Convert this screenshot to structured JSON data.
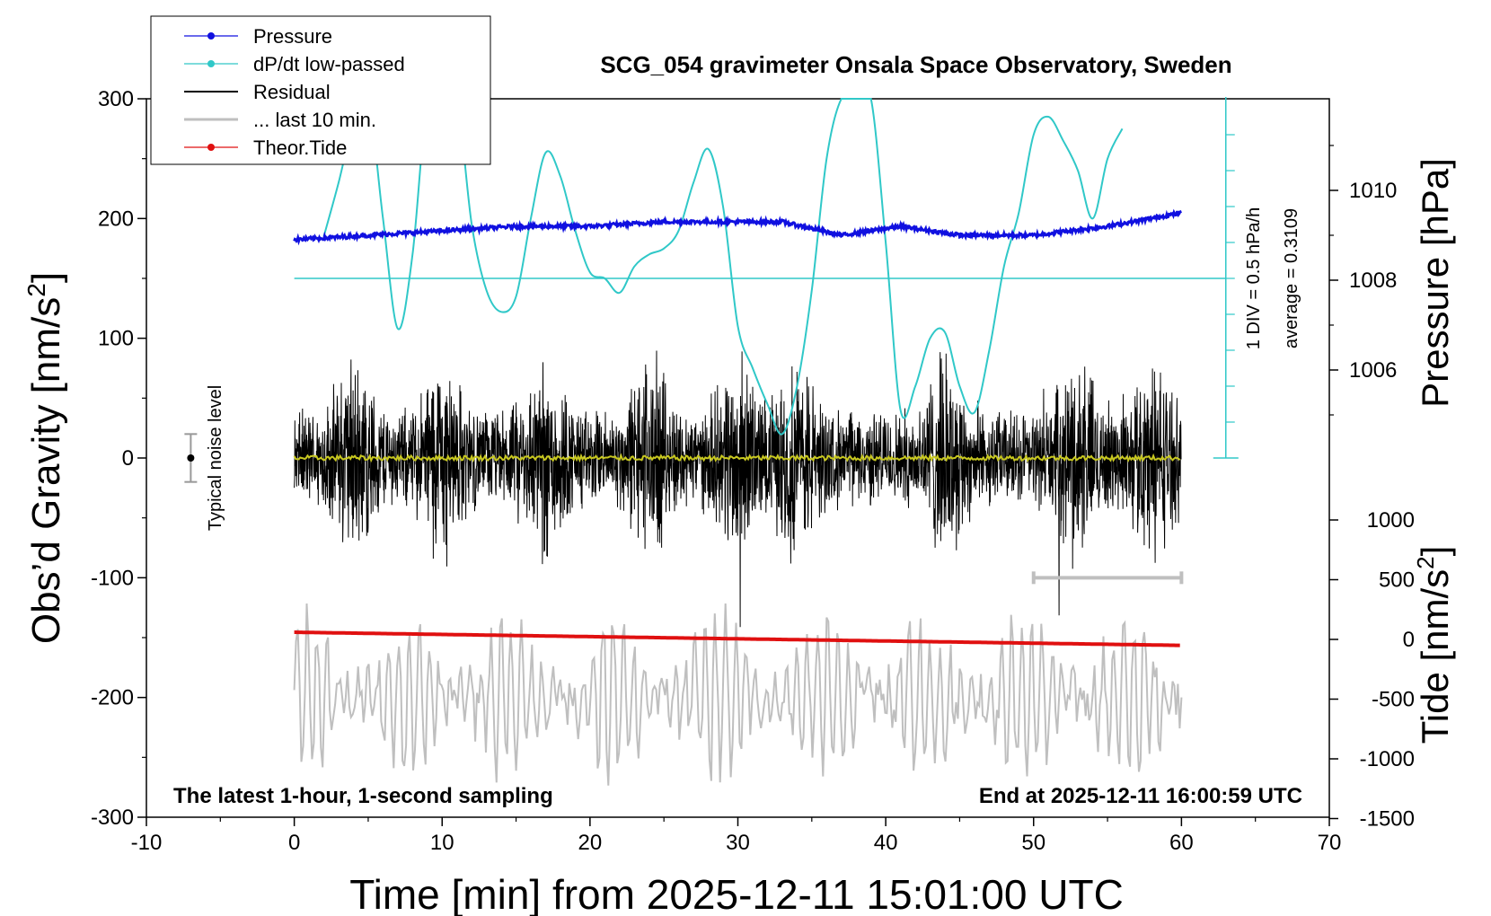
{
  "chart_data": {
    "type": "line",
    "title": "SCG_054 gravimeter Onsala Space Observatory, Sweden",
    "xlabel": "Time [min] from 2025-12-11 15:01:00 UTC",
    "ylabel_left": "Obs’d Gravity [nm/s",
    "ylabel_right_top": "Pressure [hPa]",
    "ylabel_right_bottom": "Tide [nm/s",
    "unit_sup": "2",
    "xlim": [
      -10,
      70
    ],
    "ylim_left": [
      -300,
      300
    ],
    "pressure_lim": [
      1004,
      1012
    ],
    "tide_lim": [
      -1500,
      1500
    ],
    "x_ticks": [
      -10,
      0,
      10,
      20,
      30,
      40,
      50,
      60,
      70
    ],
    "x_tick_labels": [
      "-10",
      "0",
      "10",
      "20",
      "30",
      "40",
      "50",
      "60",
      "70"
    ],
    "y_ticks_left": [
      300,
      200,
      100,
      0,
      -100,
      -200,
      -300
    ],
    "y_tick_labels_left": [
      "300",
      "200",
      "100",
      "0",
      "-100",
      "-200",
      "-300"
    ],
    "pressure_ticks": [
      1010,
      1008,
      1006
    ],
    "pressure_tick_labels": [
      "1010",
      "1008",
      "1006"
    ],
    "tide_ticks": [
      1000,
      500,
      0,
      -500,
      -1000,
      -1500
    ],
    "tide_tick_labels": [
      "1000",
      "500",
      "0",
      "-500",
      "-1000",
      "-1500"
    ],
    "legend": {
      "position": "top-left",
      "entries": [
        {
          "label": "Pressure",
          "color": "#1010e0",
          "marker": true
        },
        {
          "label": "dP/dt low-passed",
          "color": "#30c8c8",
          "marker": true
        },
        {
          "label": "Residual",
          "color": "#000000",
          "marker": false
        },
        {
          "label": "... last 10 min.",
          "color": "#bfbfbf",
          "marker": false
        },
        {
          "label": "Theor.Tide",
          "color": "#e01010",
          "marker": true
        }
      ]
    },
    "annotations": {
      "noise_label": "Typical noise level",
      "div_label": "1 DIV = 0.5 hPa/h",
      "average_label": "average = 0.3109",
      "bottom_left": "The latest 1-hour, 1-second sampling",
      "bottom_right": "End at 2025-12-11 16:00:59 UTC"
    },
    "series": [
      {
        "name": "Pressure",
        "color": "#1010e0",
        "axis": "pressure",
        "x": [
          0,
          5,
          10,
          15,
          20,
          25,
          30,
          33,
          37,
          41,
          45,
          50,
          55,
          60
        ],
        "y": [
          1008.9,
          1009.0,
          1009.1,
          1009.2,
          1009.2,
          1009.3,
          1009.3,
          1009.3,
          1009.0,
          1009.2,
          1009.0,
          1009.0,
          1009.2,
          1009.5
        ]
      },
      {
        "name": "dP/dt low-passed",
        "color": "#30c8c8",
        "axis": "left",
        "x": [
          2,
          3,
          4,
          5,
          6,
          7,
          8,
          9,
          10,
          11,
          12,
          13,
          14,
          15,
          16,
          17,
          18,
          19,
          20,
          21,
          22,
          23,
          24,
          25,
          26,
          27,
          28,
          29,
          30,
          31,
          32,
          33,
          34,
          35,
          36,
          37,
          38,
          39,
          40,
          41,
          42,
          43,
          44,
          45,
          46,
          47,
          48,
          49,
          50,
          51,
          52,
          53,
          54,
          55,
          56
        ],
        "y": [
          185,
          230,
          280,
          330,
          200,
          108,
          170,
          310,
          330,
          310,
          195,
          140,
          122,
          135,
          200,
          255,
          235,
          190,
          155,
          150,
          138,
          160,
          170,
          175,
          190,
          230,
          258,
          210,
          110,
          75,
          45,
          20,
          60,
          140,
          250,
          320,
          380,
          340,
          180,
          40,
          60,
          100,
          105,
          60,
          38,
          90,
          160,
          205,
          270,
          285,
          265,
          240,
          200,
          250,
          275
        ]
      },
      {
        "name": "Residual",
        "color": "#000000",
        "axis": "left",
        "x_range": [
          0,
          60
        ],
        "amplitude": 45,
        "bursts": [
          4,
          10,
          17,
          24,
          30,
          34,
          44,
          53,
          58
        ]
      },
      {
        "name": "... last 10 min.",
        "color": "#bfbfbf",
        "axis": "left",
        "x_range": [
          50,
          60
        ],
        "y": -100
      },
      {
        "name": "Theor.Tide",
        "color": "#e01010",
        "axis": "tide",
        "x": [
          0,
          60
        ],
        "y": [
          60,
          -50
        ]
      },
      {
        "name": "Tide band",
        "color": "#bfbfbf",
        "axis": "left",
        "x_range": [
          0,
          60
        ],
        "center": -200,
        "amplitude": 65
      },
      {
        "name": "Smoothed",
        "color": "#c8c820",
        "axis": "left",
        "x_range": [
          0,
          60
        ],
        "center": 0,
        "amplitude": 2
      }
    ],
    "noise_bar": {
      "x": -7,
      "y": 0,
      "err": 20
    },
    "dpdt_zero_level": 150,
    "grid": false
  }
}
